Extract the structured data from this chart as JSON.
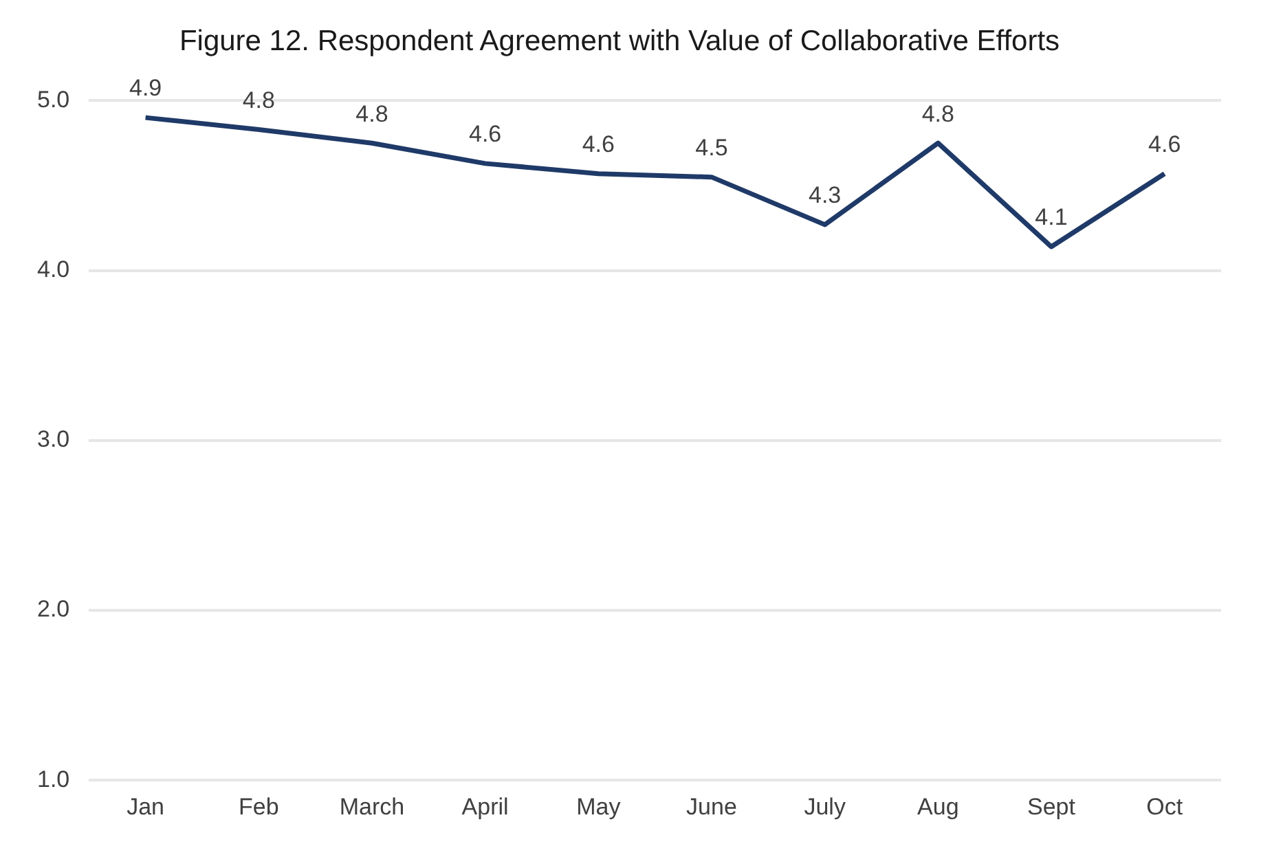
{
  "chart_data": {
    "type": "line",
    "title": "Figure 12. Respondent Agreement with Value of Collaborative Efforts",
    "categories": [
      "Jan",
      "Feb",
      "March",
      "April",
      "May",
      "June",
      "July",
      "Aug",
      "Sept",
      "Oct"
    ],
    "series": [
      {
        "color": "#1f3a68",
        "values": [
          4.9,
          4.83,
          4.75,
          4.63,
          4.57,
          4.55,
          4.27,
          4.75,
          4.14,
          4.57
        ],
        "value_labels": [
          "4.9",
          "4.8",
          "4.8",
          "4.6",
          "4.6",
          "4.5",
          "4.3",
          "4.8",
          "4.1",
          "4.6"
        ]
      }
    ],
    "ylim": [
      1,
      5
    ],
    "yticks": [
      {
        "value": 1,
        "label": "1.0"
      },
      {
        "value": 2,
        "label": "2.0"
      },
      {
        "value": 3,
        "label": "3.0"
      },
      {
        "value": 4,
        "label": "4.0"
      },
      {
        "value": 5,
        "label": "5.0"
      }
    ],
    "grid": "y",
    "legend": false,
    "marker": "none",
    "line_style": "solid"
  }
}
